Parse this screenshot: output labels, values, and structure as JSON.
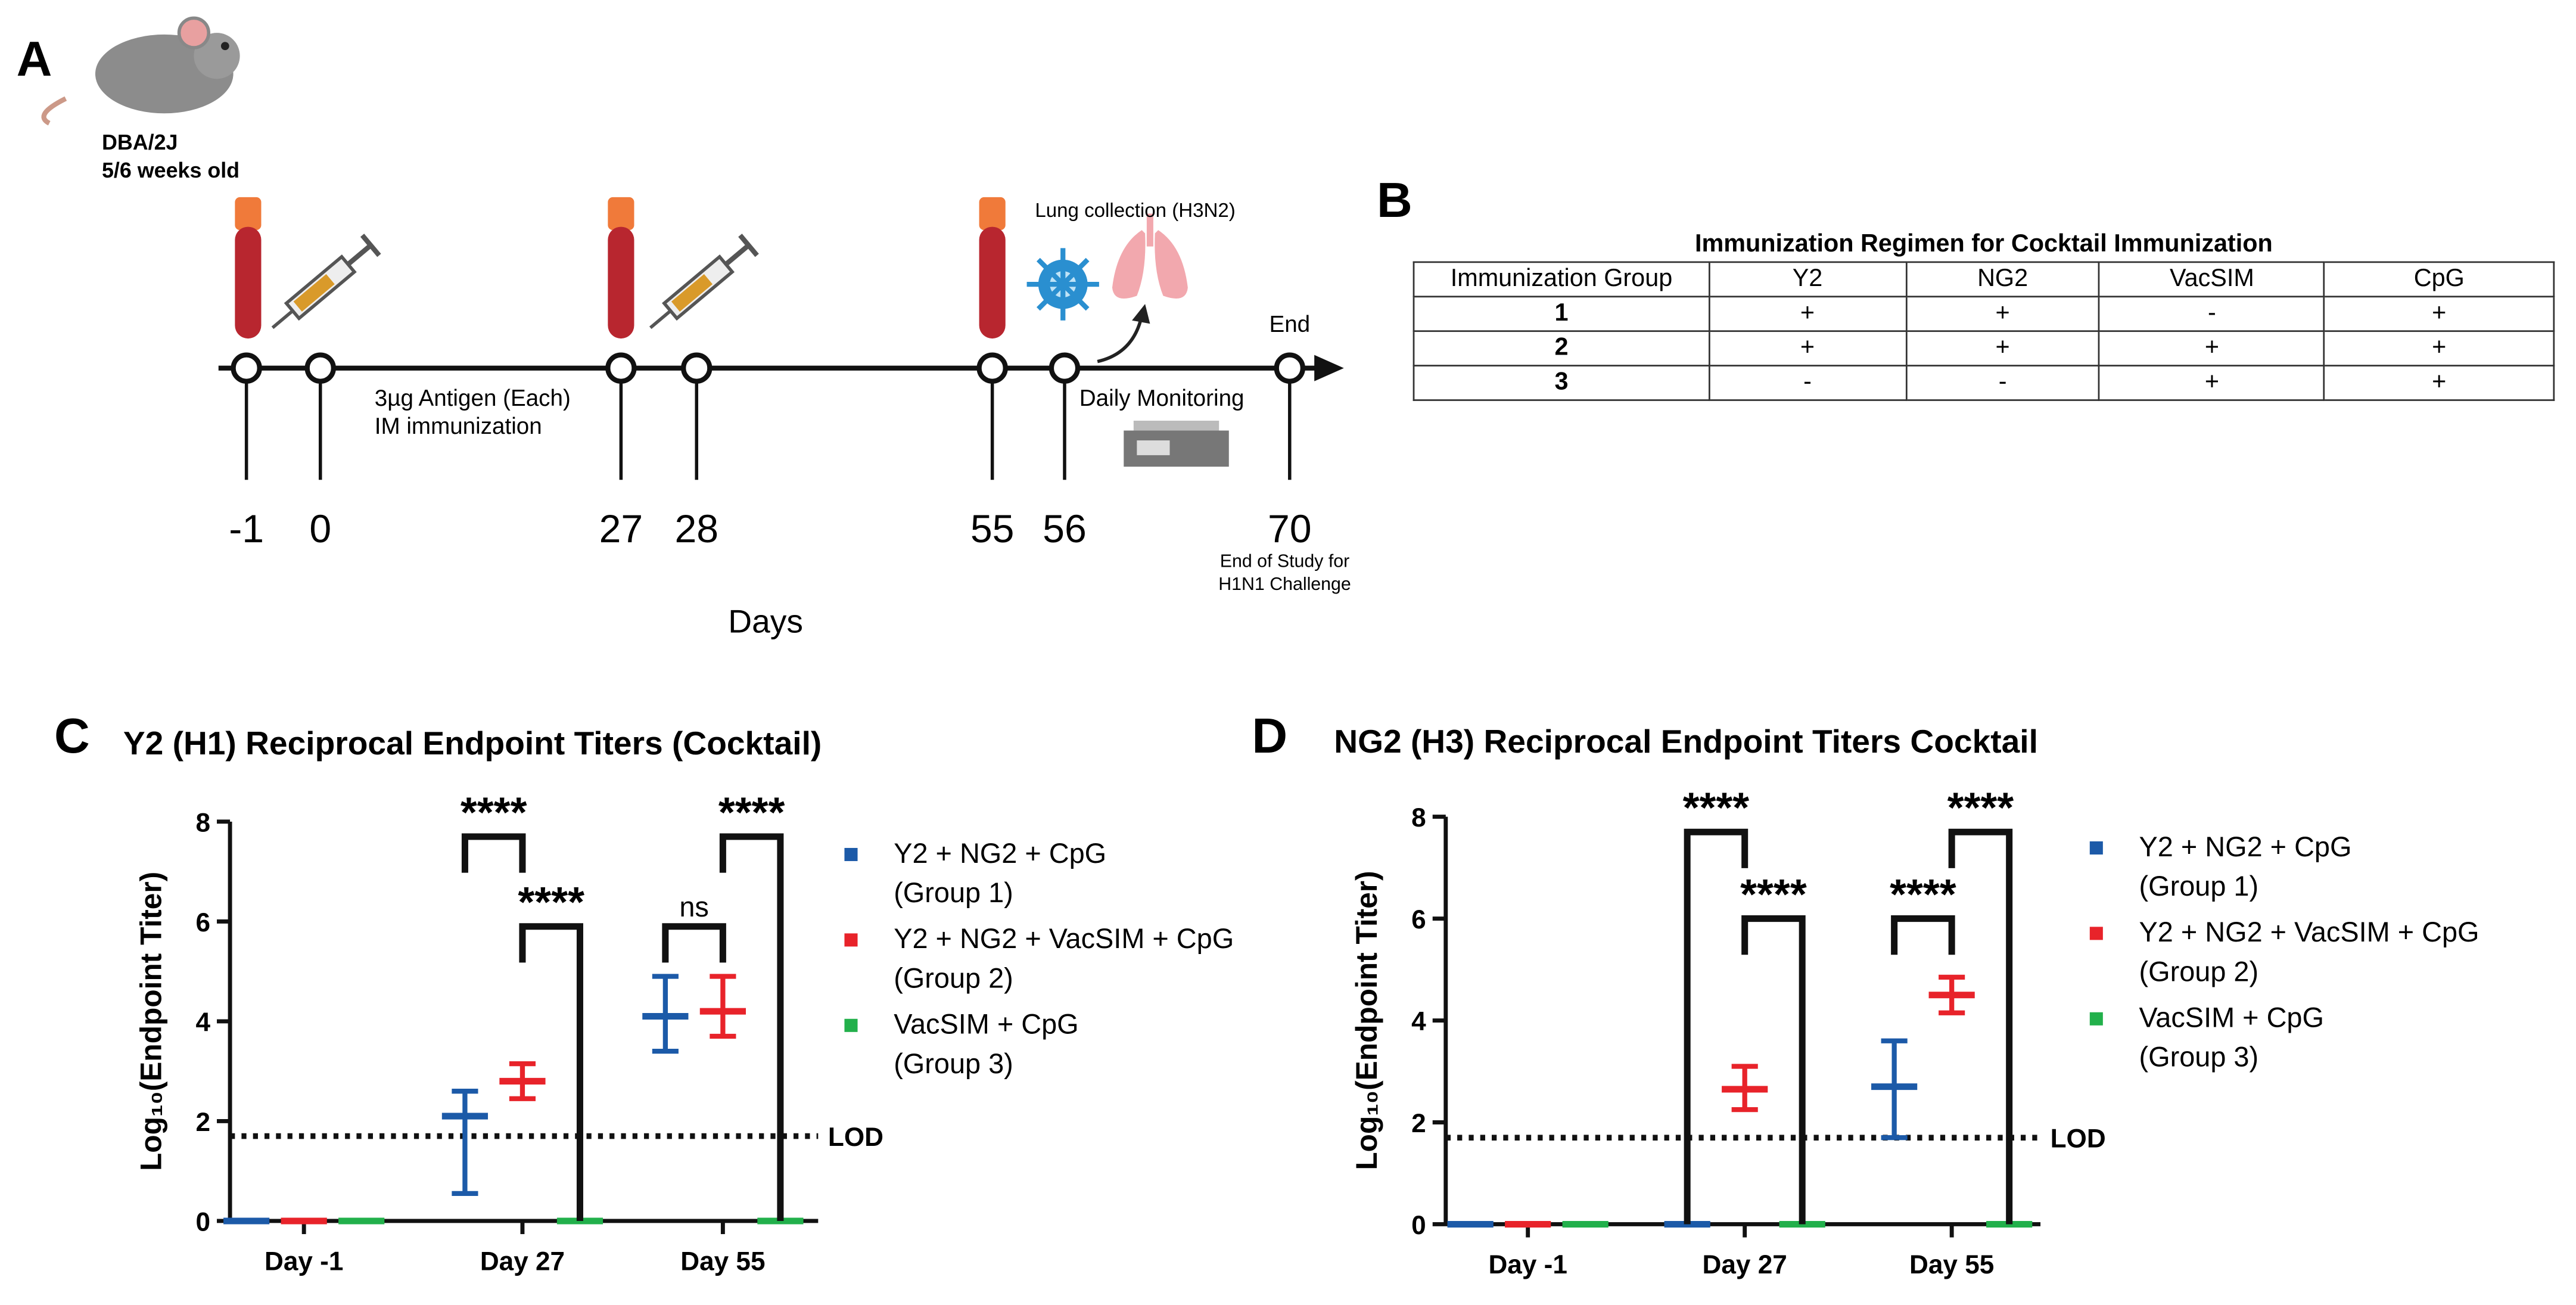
{
  "panel_labels": [
    "A",
    "B",
    "C",
    "D"
  ],
  "timeline": {
    "mouse_strain": "DBA/2J",
    "mouse_age": "5/6 weeks old",
    "days": [
      "-1",
      "0",
      "27",
      "28",
      "55",
      "56",
      "70"
    ],
    "axis_label": "Days",
    "annotations": [
      "3µg Antigen (Each)",
      "IM immunization",
      "Lung collection (H3N2)",
      "Daily Monitoring",
      "End",
      "End of Study for",
      "H1N1 Challenge"
    ]
  },
  "table": {
    "title": "Immunization Regimen for Cocktail Immunization",
    "header": [
      "Immunization Group",
      "Y2",
      "NG2",
      "VacSIM",
      "CpG"
    ],
    "rows": [
      [
        "1",
        "+",
        "+",
        "-",
        "+"
      ],
      [
        "2",
        "+",
        "+",
        "+",
        "+"
      ],
      [
        "3",
        "-",
        "-",
        "+",
        "+"
      ]
    ]
  },
  "chart_data": [
    {
      "type": "dot",
      "title": "Y2 (H1) Reciprocal Endpoint Titers (Cocktail)",
      "y_label": "Log₁₀(Endpoint Titer)",
      "categories": [
        "Day -1",
        "Day 27",
        "Day 55"
      ],
      "series": [
        {
          "name": "Y2 + NG2 + CpG (Group 1)",
          "color": "#1c5aa8",
          "values": [
            0,
            2.1,
            4.1
          ],
          "lower": [
            0,
            0.55,
            3.4
          ],
          "upper": [
            0,
            2.6,
            4.9
          ]
        },
        {
          "name": "Y2 + NG2 + VacSIM + CpG (Group 2)",
          "color": "#e8232a",
          "values": [
            0,
            2.8,
            4.2
          ],
          "lower": [
            0,
            2.45,
            3.7
          ],
          "upper": [
            0,
            3.15,
            4.9
          ]
        },
        {
          "name": "VacSIM + CpG (Group 3)",
          "color": "#22b04b",
          "values": [
            0,
            0,
            0
          ],
          "lower": [
            0,
            0,
            0
          ],
          "upper": [
            0,
            0,
            0
          ]
        }
      ],
      "ylim": [
        0,
        8
      ],
      "yticks": [
        0,
        2,
        4,
        6,
        8
      ],
      "reference_line": {
        "value": 1.7,
        "label": "LOD"
      },
      "brackets": [
        {
          "label": "****",
          "y": 7.7
        },
        {
          "label": "****",
          "y": 5.9
        },
        {
          "label": "ns",
          "y": 5.9
        },
        {
          "label": "****",
          "y": 7.7
        }
      ]
    },
    {
      "type": "dot",
      "title": "NG2 (H3) Reciprocal Endpoint Titers Cocktail",
      "y_label": "Log₁₀(Endpoint Titer)",
      "categories": [
        "Day -1",
        "Day 27",
        "Day 55"
      ],
      "series": [
        {
          "name": "Y2 + NG2 + CpG (Group 1)",
          "color": "#1c5aa8",
          "values": [
            0,
            0,
            2.7
          ],
          "lower": [
            0,
            0,
            1.7
          ],
          "upper": [
            0,
            0,
            3.6
          ]
        },
        {
          "name": "Y2 + NG2 + VacSIM + CpG (Group 2)",
          "color": "#e8232a",
          "values": [
            0,
            2.65,
            4.5
          ],
          "lower": [
            0,
            2.25,
            4.15
          ],
          "upper": [
            0,
            3.1,
            4.85
          ]
        },
        {
          "name": "VacSIM + CpG (Group 3)",
          "color": "#22b04b",
          "values": [
            0,
            0,
            0
          ],
          "lower": [
            0,
            0,
            0
          ],
          "upper": [
            0,
            0,
            0
          ]
        }
      ],
      "ylim": [
        0,
        8
      ],
      "yticks": [
        0,
        2,
        4,
        6,
        8
      ],
      "reference_line": {
        "value": 1.7,
        "label": "LOD"
      },
      "brackets": [
        {
          "label": "****",
          "y": 7.7
        },
        {
          "label": "****",
          "y": 6.0
        },
        {
          "label": "****",
          "y": 6.0
        },
        {
          "label": "****",
          "y": 7.7
        }
      ]
    }
  ]
}
